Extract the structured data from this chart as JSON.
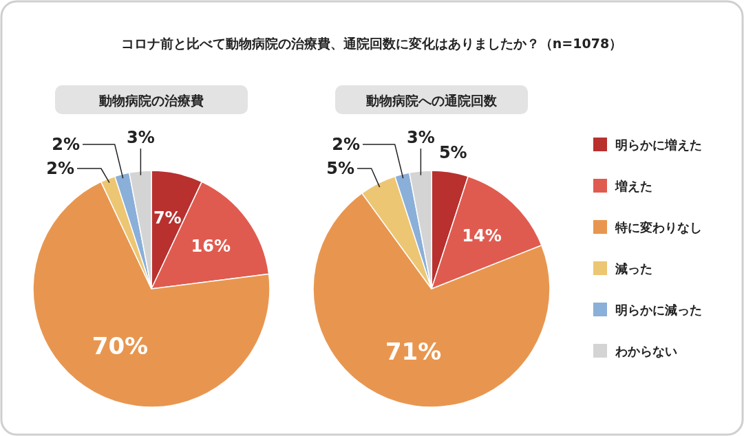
{
  "chart_data": [
    {
      "type": "pie",
      "title": "コロナ前と比べて動物病院の治療費、通院回数に変化はありましたか？（n=1078）",
      "subtitle": "動物病院の治療費",
      "categories": [
        null,
        null,
        null,
        null,
        null,
        null
      ],
      "values": [
        7,
        16,
        70,
        2,
        2,
        3
      ],
      "value_labels": [
        "7%",
        "16%",
        "70%",
        "2%",
        "2%",
        "3%"
      ],
      "colors": [
        "#b8312f",
        "#e05b4f",
        "#e8964f",
        "#edc673",
        "#8aafd9",
        "#d4d4d4"
      ],
      "legend": false
    },
    {
      "type": "pie",
      "subtitle": "動物病院への通院回数",
      "categories": [
        "明らかに増えた",
        "増えた",
        "特に変わりなし",
        "減った",
        "明らかに減った",
        "わからない"
      ],
      "values": [
        5,
        14,
        71,
        5,
        2,
        3
      ],
      "value_labels": [
        "5%",
        "14%",
        "71%",
        "5%",
        "2%",
        "3%"
      ],
      "colors": [
        "#b8312f",
        "#e05b4f",
        "#e8964f",
        "#edc673",
        "#8aafd9",
        "#d4d4d4"
      ],
      "legend": "right"
    }
  ]
}
